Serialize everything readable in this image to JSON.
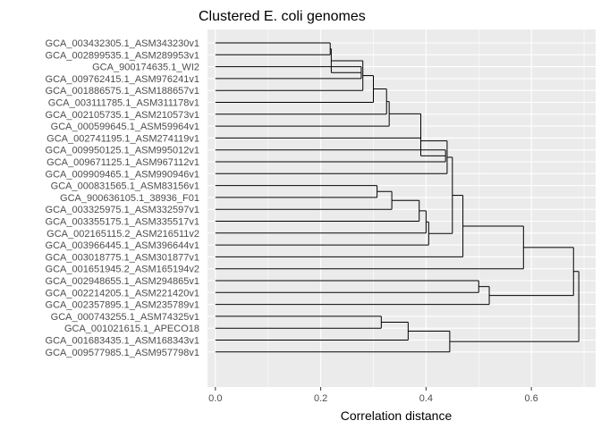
{
  "chart_data": {
    "type": "dendrogram",
    "title": "Clustered E. coli genomes",
    "xlabel": "Correlation distance",
    "ylabel": "",
    "xlim": [
      -0.015,
      0.722
    ],
    "x_ticks": [
      0.0,
      0.2,
      0.4,
      0.6
    ],
    "x_tick_labels": [
      "0.0",
      "0.2",
      "0.4",
      "0.6"
    ],
    "grid": true,
    "leaves": [
      "GCA_003432305.1_ASM343230v1",
      "GCA_002899535.1_ASM289953v1",
      "GCA_900174635.1_WI2",
      "GCA_009762415.1_ASM976241v1",
      "GCA_001886575.1_ASM188657v1",
      "GCA_003111785.1_ASM311178v1",
      "GCA_002105735.1_ASM210573v1",
      "GCA_000599645.1_ASM59964v1",
      "GCA_002741195.1_ASM274119v1",
      "GCA_009950125.1_ASM995012v1",
      "GCA_009671125.1_ASM967112v1",
      "GCA_009909465.1_ASM990946v1",
      "GCA_000831565.1_ASM83156v1",
      "GCA_900636105.1_38936_F01",
      "GCA_003325975.1_ASM332597v1",
      "GCA_003355175.1_ASM335517v1",
      "GCA_002165115.2_ASM216511v2",
      "GCA_003966445.1_ASM396644v1",
      "GCA_003018775.1_ASM301877v1",
      "GCA_001651945.2_ASM165194v2",
      "GCA_002948655.1_ASM294865v1",
      "GCA_002214205.1_ASM221420v1",
      "GCA_002357895.1_ASM235789v1",
      "GCA_000743255.1_ASM74325v1",
      "GCA_001021615.1_APECO18",
      "GCA_001683435.1_ASM168343v1",
      "GCA_009577985.1_ASM957798v1"
    ],
    "merges": [
      {
        "a": "L1",
        "b": "L2",
        "height": 0.218
      },
      {
        "a": "L3",
        "b": "L4",
        "height": 0.277
      },
      {
        "a": "M1",
        "b": "M2",
        "height": 0.22
      },
      {
        "a": "M3",
        "b": "L5",
        "height": 0.28
      },
      {
        "a": "M4",
        "b": "L6",
        "height": 0.3
      },
      {
        "a": "M5",
        "b": "L7",
        "height": 0.325
      },
      {
        "a": "M6",
        "b": "L8",
        "height": 0.33
      },
      {
        "a": "M7",
        "b": "L9",
        "height": 0.39
      },
      {
        "a": "L10",
        "b": "L11",
        "height": 0.437
      },
      {
        "a": "M8",
        "b": "M9",
        "height": 0.39
      },
      {
        "a": "M10",
        "b": "L12",
        "height": 0.44
      },
      {
        "a": "L13",
        "b": "L14",
        "height": 0.307
      },
      {
        "a": "M12",
        "b": "L15",
        "height": 0.335
      },
      {
        "a": "M13",
        "b": "L16",
        "height": 0.387
      },
      {
        "a": "M14",
        "b": "L17",
        "height": 0.4
      },
      {
        "a": "M15",
        "b": "L18",
        "height": 0.405
      },
      {
        "a": "M11",
        "b": "M16",
        "height": 0.45
      },
      {
        "a": "M17",
        "b": "L19",
        "height": 0.47
      },
      {
        "a": "M18",
        "b": "L20",
        "height": 0.585
      },
      {
        "a": "L21",
        "b": "L22",
        "height": 0.5
      },
      {
        "a": "M20",
        "b": "L23",
        "height": 0.52
      },
      {
        "a": "M19",
        "b": "M21",
        "height": 0.68
      },
      {
        "a": "L24",
        "b": "L25",
        "height": 0.315
      },
      {
        "a": "M23",
        "b": "L26",
        "height": 0.366
      },
      {
        "a": "M24",
        "b": "L27",
        "height": 0.445
      },
      {
        "a": "M22",
        "b": "M25",
        "height": 0.69
      }
    ]
  }
}
